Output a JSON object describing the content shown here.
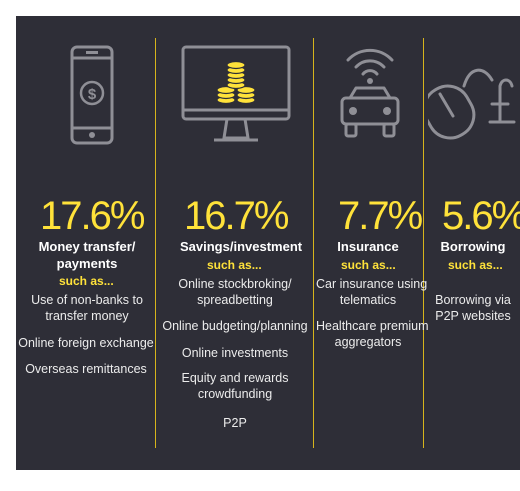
{
  "columns": [
    {
      "icon": "smartphone-dollar-icon",
      "percent": "17.6%",
      "title_lines": [
        "Money transfer/",
        "payments"
      ],
      "such_as": "such as...",
      "items": [
        [
          "Use of non-banks to",
          "transfer money"
        ],
        [
          "Online foreign exchange"
        ],
        [
          "Overseas remittances"
        ]
      ]
    },
    {
      "icon": "monitor-coins-icon",
      "percent": "16.7%",
      "title_lines": [
        "Savings/investment"
      ],
      "such_as": "such as...",
      "items": [
        [
          "Online stockbroking/",
          "spreadbetting"
        ],
        [
          "Online budgeting/planning"
        ],
        [
          "Online investments"
        ],
        [
          "Equity and rewards",
          "crowdfunding"
        ],
        [
          "P2P"
        ]
      ]
    },
    {
      "icon": "connected-car-icon",
      "percent": "7.7%",
      "title_lines": [
        "Insurance"
      ],
      "such_as": "such as...",
      "items": [
        [
          "Car insurance using",
          "telematics"
        ],
        [
          "Healthcare premium",
          "aggregators"
        ]
      ]
    },
    {
      "icon": "mouse-pound-icon",
      "percent": "5.6%",
      "title_lines": [
        "Borrowing"
      ],
      "such_as": "such as...",
      "items": [
        [
          "Borrowing via",
          "P2P websites"
        ]
      ]
    }
  ],
  "colors": {
    "background": "#2e2e37",
    "accent": "#ffe23a",
    "divider": "#d6b41c",
    "text": "#ececec"
  }
}
